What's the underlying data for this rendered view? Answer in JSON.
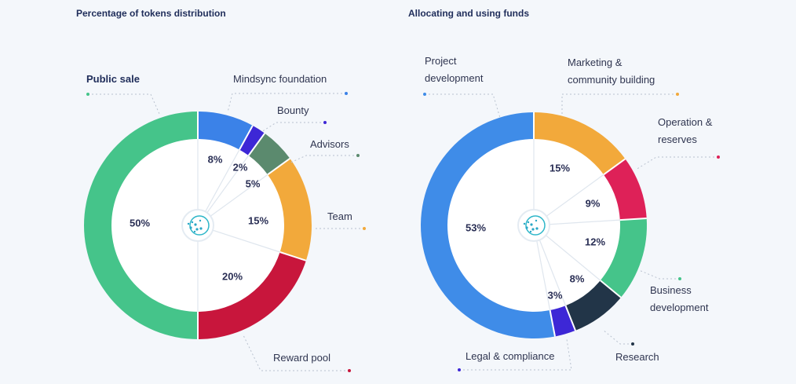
{
  "chart_data": [
    {
      "type": "pie",
      "title": "Percentage of tokens distribution",
      "slices": [
        {
          "name": "Mindsync foundation",
          "value": 8,
          "label": "8%",
          "color": "#3b82e8",
          "label_lines": [
            "Mindsync foundation"
          ]
        },
        {
          "name": "Bounty",
          "value": 2,
          "label": "2%",
          "color": "#3d27d6",
          "label_lines": [
            "Bounty"
          ]
        },
        {
          "name": "Advisors",
          "value": 5,
          "label": "5%",
          "color": "#5b8a6e",
          "label_lines": [
            "Advisors"
          ]
        },
        {
          "name": "Team",
          "value": 15,
          "label": "15%",
          "color": "#f2a93b",
          "label_lines": [
            "Team"
          ]
        },
        {
          "name": "Reward pool",
          "value": 20,
          "label": "20%",
          "color": "#c8163c",
          "label_lines": [
            "Reward pool"
          ]
        },
        {
          "name": "Public sale",
          "value": 50,
          "label": "50%",
          "color": "#45c48a",
          "label_lines": [
            "Public sale"
          ],
          "bold": true
        }
      ]
    },
    {
      "type": "pie",
      "title": "Allocating and using funds",
      "slices": [
        {
          "name": "Marketing & community building",
          "value": 15,
          "label": "15%",
          "color": "#f2a93b",
          "label_lines": [
            "Marketing &",
            "community building"
          ]
        },
        {
          "name": "Operation & reserves",
          "value": 9,
          "label": "9%",
          "color": "#de2158",
          "label_lines": [
            "Operation &",
            "reserves"
          ]
        },
        {
          "name": "Business development",
          "value": 12,
          "label": "12%",
          "color": "#45c48a",
          "label_lines": [
            "Business",
            "development"
          ]
        },
        {
          "name": "Research",
          "value": 8,
          "label": "8%",
          "color": "#223548",
          "label_lines": [
            "Research"
          ]
        },
        {
          "name": "Legal & compliance",
          "value": 3,
          "label": "3%",
          "color": "#3d27d6",
          "label_lines": [
            "Legal & compliance"
          ]
        },
        {
          "name": "Project development",
          "value": 53,
          "label": "53%",
          "color": "#3f8ce8",
          "label_lines": [
            "Project",
            "development"
          ]
        }
      ]
    }
  ]
}
